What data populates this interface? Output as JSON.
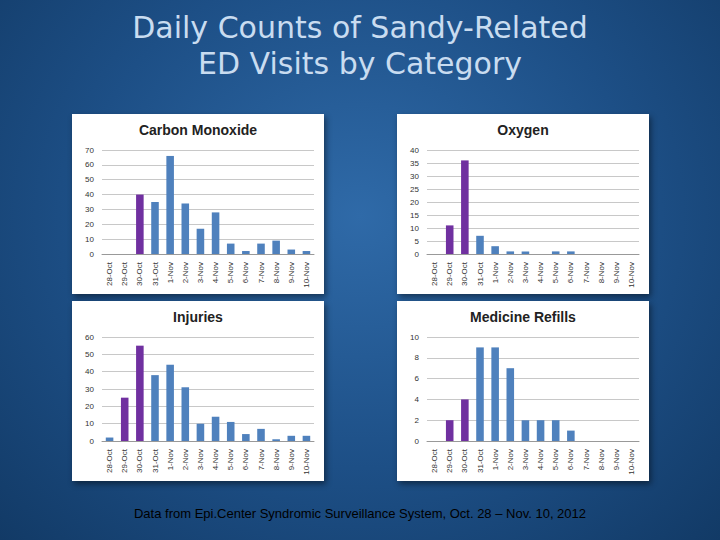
{
  "title": "Daily Counts of Sandy-Related ED Visits by Category",
  "footnote": "Data from Epi.Center Syndromic Surveillance System, Oct. 28 – Nov. 10, 2012",
  "chart_data": [
    {
      "type": "bar",
      "title": "Carbon Monoxide",
      "categories": [
        "28-Oct",
        "29-Oct",
        "30-Oct",
        "31-Oct",
        "1-Nov",
        "2-Nov",
        "3-Nov",
        "4-Nov",
        "5-Nov",
        "6-Nov",
        "7-Nov",
        "8-Nov",
        "9-Nov",
        "10-Nov"
      ],
      "values": [
        0,
        0,
        40,
        35,
        66,
        34,
        17,
        28,
        7,
        2,
        7,
        9,
        3,
        2
      ],
      "colors": [
        "#4f81bd",
        "#4f81bd",
        "#7030a0",
        "#4f81bd",
        "#4f81bd",
        "#4f81bd",
        "#4f81bd",
        "#4f81bd",
        "#4f81bd",
        "#4f81bd",
        "#4f81bd",
        "#4f81bd",
        "#4f81bd",
        "#4f81bd"
      ],
      "ylim": [
        0,
        70
      ],
      "yticks": [
        0,
        10,
        20,
        30,
        40,
        50,
        60,
        70
      ],
      "grid": true
    },
    {
      "type": "bar",
      "title": "Oxygen",
      "categories": [
        "28-Oct",
        "29-Oct",
        "30-Oct",
        "31-Oct",
        "1-Nov",
        "2-Nov",
        "3-Nov",
        "4-Nov",
        "5-Nov",
        "6-Nov",
        "7-Nov",
        "8-Nov",
        "9-Nov",
        "10-Nov"
      ],
      "values": [
        0,
        11,
        36,
        7,
        3,
        1,
        1,
        0,
        1,
        1,
        0,
        0,
        0,
        0
      ],
      "colors": [
        "#4f81bd",
        "#7030a0",
        "#7030a0",
        "#4f81bd",
        "#4f81bd",
        "#4f81bd",
        "#4f81bd",
        "#4f81bd",
        "#4f81bd",
        "#4f81bd",
        "#4f81bd",
        "#4f81bd",
        "#4f81bd",
        "#4f81bd"
      ],
      "ylim": [
        0,
        40
      ],
      "yticks": [
        0,
        5,
        10,
        15,
        20,
        25,
        30,
        35,
        40
      ],
      "grid": true
    },
    {
      "type": "bar",
      "title": "Injuries",
      "categories": [
        "28-Oct",
        "29-Oct",
        "30-Oct",
        "31-Oct",
        "1-Nov",
        "2-Nov",
        "3-Nov",
        "4-Nov",
        "5-Nov",
        "6-Nov",
        "7-Nov",
        "8-Nov",
        "9-Nov",
        "10-Nov"
      ],
      "values": [
        2,
        25,
        55,
        38,
        44,
        31,
        10,
        14,
        11,
        4,
        7,
        1,
        3,
        3
      ],
      "colors": [
        "#4f81bd",
        "#7030a0",
        "#7030a0",
        "#4f81bd",
        "#4f81bd",
        "#4f81bd",
        "#4f81bd",
        "#4f81bd",
        "#4f81bd",
        "#4f81bd",
        "#4f81bd",
        "#4f81bd",
        "#4f81bd",
        "#4f81bd"
      ],
      "ylim": [
        0,
        60
      ],
      "yticks": [
        0,
        10,
        20,
        30,
        40,
        50,
        60
      ],
      "grid": true
    },
    {
      "type": "bar",
      "title": "Medicine Refills",
      "categories": [
        "28-Oct",
        "29-Oct",
        "30-Oct",
        "31-Oct",
        "1-Nov",
        "2-Nov",
        "3-Nov",
        "4-Nov",
        "5-Nov",
        "6-Nov",
        "7-Nov",
        "8-Nov",
        "9-Nov",
        "10-Nov"
      ],
      "values": [
        0,
        2,
        4,
        9,
        9,
        7,
        2,
        2,
        2,
        1,
        0,
        0,
        0,
        0
      ],
      "colors": [
        "#4f81bd",
        "#7030a0",
        "#7030a0",
        "#4f81bd",
        "#4f81bd",
        "#4f81bd",
        "#4f81bd",
        "#4f81bd",
        "#4f81bd",
        "#4f81bd",
        "#4f81bd",
        "#4f81bd",
        "#4f81bd",
        "#4f81bd"
      ],
      "ylim": [
        0,
        10
      ],
      "yticks": [
        0,
        2,
        4,
        6,
        8,
        10
      ],
      "grid": true
    }
  ]
}
